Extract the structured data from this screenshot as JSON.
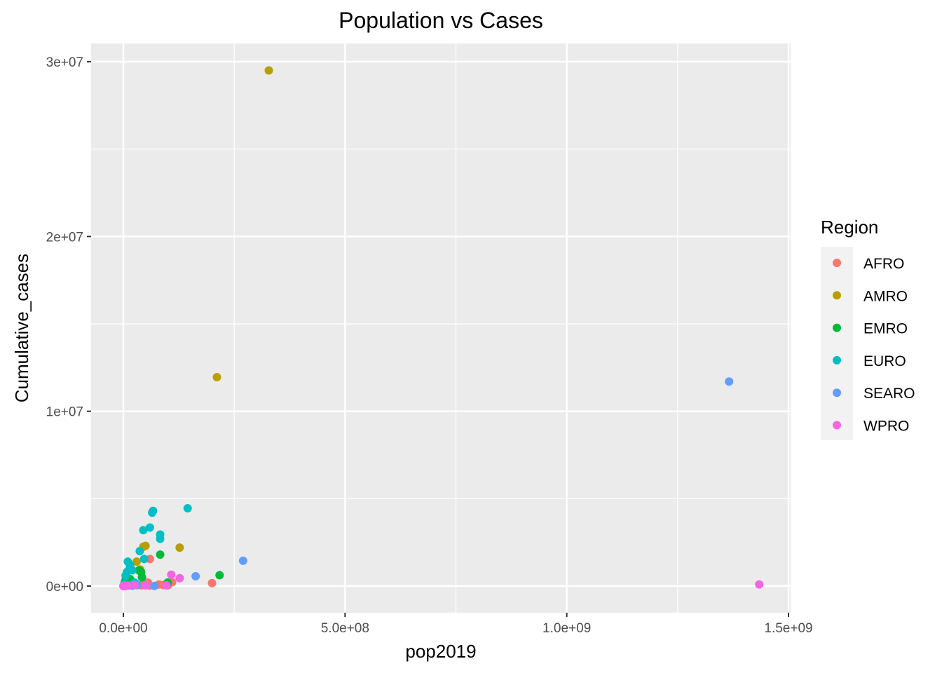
{
  "chart_data": {
    "type": "scatter",
    "title": "Population vs Cases",
    "xlabel": "pop2019",
    "ylabel": "Cumulative_cases",
    "xlim": [
      -70000000,
      1500000000
    ],
    "ylim": [
      -1400000,
      30500000
    ],
    "x_ticks": [
      0,
      500000000,
      1000000000,
      1500000000
    ],
    "x_tick_labels": [
      "0.0e+00",
      "5.0e+08",
      "1.0e+09",
      "1.5e+09"
    ],
    "y_ticks": [
      0,
      10000000,
      20000000,
      30000000
    ],
    "y_tick_labels": [
      "0e+00",
      "1e+07",
      "2e+07",
      "3e+07"
    ],
    "grid": true,
    "panel_background": "#ebebeb",
    "legend": {
      "title": "Region",
      "position": "right"
    },
    "series": [
      {
        "name": "AFRO",
        "color": "#f8766d",
        "points": [
          [
            1000000,
            10000
          ],
          [
            5000000,
            30000
          ],
          [
            10000000,
            50000
          ],
          [
            20000000,
            80000
          ],
          [
            30000000,
            100000
          ],
          [
            40000000,
            40000
          ],
          [
            45000000,
            120000
          ],
          [
            50000000,
            80000
          ],
          [
            55000000,
            200000
          ],
          [
            60000000,
            30000
          ],
          [
            60000000,
            1550000
          ],
          [
            80000000,
            90000
          ],
          [
            90000000,
            60000
          ],
          [
            100000000,
            40000
          ],
          [
            110000000,
            220000
          ],
          [
            200000000,
            170000
          ]
        ]
      },
      {
        "name": "AMRO",
        "color": "#b79f00",
        "points": [
          [
            1000000,
            20000
          ],
          [
            5000000,
            100000
          ],
          [
            10000000,
            200000
          ],
          [
            20000000,
            150000
          ],
          [
            30000000,
            1400000
          ],
          [
            38000000,
            950000
          ],
          [
            45000000,
            2250000
          ],
          [
            50000000,
            2300000
          ],
          [
            127000000,
            2200000
          ],
          [
            211000000,
            11950000
          ],
          [
            328000000,
            29500000
          ]
        ]
      },
      {
        "name": "EMRO",
        "color": "#00ba38",
        "points": [
          [
            3000000,
            200000
          ],
          [
            5000000,
            350000
          ],
          [
            8000000,
            500000
          ],
          [
            10000000,
            300000
          ],
          [
            15000000,
            400000
          ],
          [
            20000000,
            250000
          ],
          [
            35000000,
            900000
          ],
          [
            40000000,
            800000
          ],
          [
            42000000,
            500000
          ],
          [
            83000000,
            1800000
          ],
          [
            100000000,
            200000
          ],
          [
            217000000,
            620000
          ]
        ]
      },
      {
        "name": "EURO",
        "color": "#00bfc4",
        "points": [
          [
            2000000,
            100000
          ],
          [
            5000000,
            600000
          ],
          [
            8000000,
            800000
          ],
          [
            10000000,
            1400000
          ],
          [
            12000000,
            900000
          ],
          [
            15000000,
            1200000
          ],
          [
            17000000,
            1000000
          ],
          [
            20000000,
            900000
          ],
          [
            25000000,
            200000
          ],
          [
            30000000,
            100000
          ],
          [
            37000000,
            2000000
          ],
          [
            45000000,
            3200000
          ],
          [
            47000000,
            1550000
          ],
          [
            60000000,
            3350000
          ],
          [
            65000000,
            4200000
          ],
          [
            67000000,
            4300000
          ],
          [
            83000000,
            2700000
          ],
          [
            83000000,
            2950000
          ],
          [
            145000000,
            4450000
          ]
        ]
      },
      {
        "name": "SEARO",
        "color": "#619cff",
        "points": [
          [
            5000000,
            10000
          ],
          [
            20000000,
            20000
          ],
          [
            30000000,
            50000
          ],
          [
            70000000,
            10000
          ],
          [
            163000000,
            560000
          ],
          [
            270000000,
            1450000
          ],
          [
            1366000000,
            11700000
          ]
        ]
      },
      {
        "name": "WPRO",
        "color": "#f564e3",
        "points": [
          [
            0,
            0
          ],
          [
            1000000,
            10000
          ],
          [
            3000000,
            20000
          ],
          [
            5000000,
            10000
          ],
          [
            10000000,
            30000
          ],
          [
            25000000,
            60000
          ],
          [
            50000000,
            40000
          ],
          [
            97000000,
            40000
          ],
          [
            108000000,
            650000
          ],
          [
            127000000,
            450000
          ],
          [
            1434000000,
            95000
          ]
        ]
      }
    ]
  }
}
